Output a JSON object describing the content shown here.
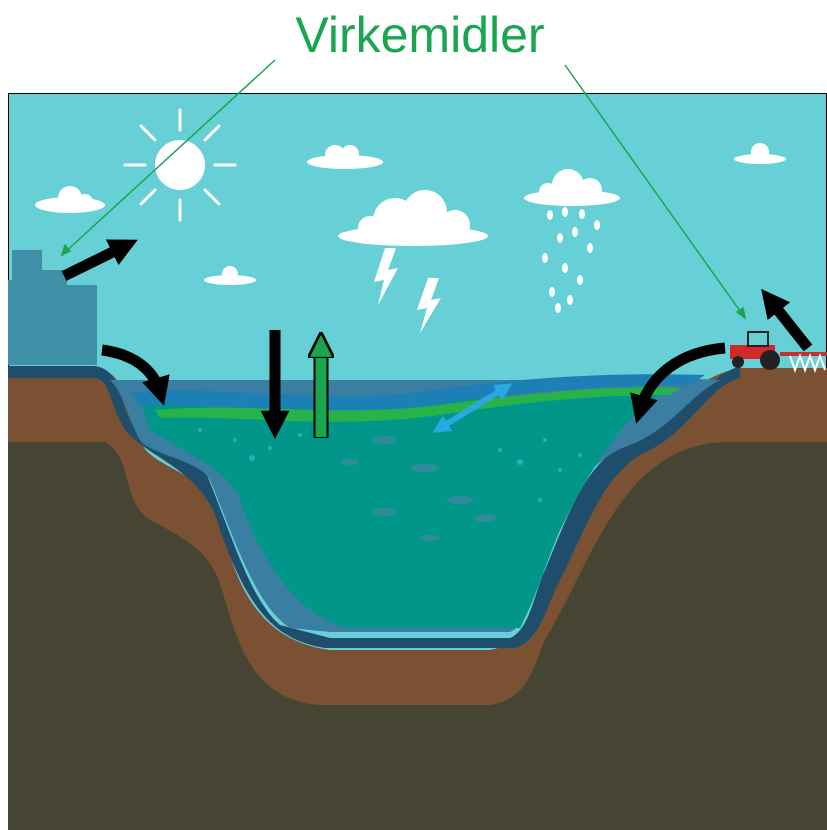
{
  "title": "Virkemidler"
}
